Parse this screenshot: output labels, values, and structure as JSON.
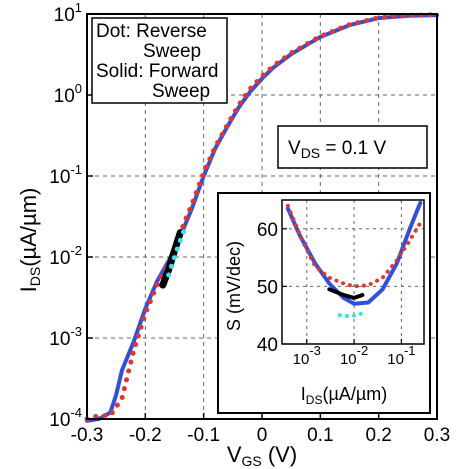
{
  "chart_data": [
    {
      "type": "line",
      "xlabel": "V",
      "xlabel_sub": "GS",
      "xlabel_unit": " (V)",
      "ylabel": "I",
      "ylabel_sub": "DS",
      "ylabel_unit": "(µA/µm)",
      "xlim": [
        -0.3,
        0.3
      ],
      "ylim": [
        0.0001,
        10
      ],
      "yscale": "log",
      "grid": true,
      "x_ticks": [
        "-0.3",
        "-0.2",
        "-0.1",
        "0",
        "0.1",
        "0.2",
        "0.3"
      ],
      "y_ticks": [
        {
          "base": "10",
          "exp": "-4"
        },
        {
          "base": "10",
          "exp": "-3"
        },
        {
          "base": "10",
          "exp": "-2"
        },
        {
          "base": "10",
          "exp": "-1"
        },
        {
          "base": "10",
          "exp": "0"
        },
        {
          "base": "10",
          "exp": "1"
        }
      ],
      "legend_box": {
        "line1": "Dot: Reverse",
        "line2": "Sweep",
        "line3": "Solid: Forward",
        "line4": "Sweep"
      },
      "annotation": {
        "prefix": "V",
        "sub": "DS",
        "suffix": " = 0.1 V"
      },
      "series": [
        {
          "color": "#2e50e0",
          "style": "solid",
          "points": [
            [
              -0.3,
              9.5e-05
            ],
            [
              -0.28,
              0.0001
            ],
            [
              -0.26,
              0.00012
            ],
            [
              -0.25,
              0.0002
            ],
            [
              -0.24,
              0.0004
            ],
            [
              -0.22,
              0.0009
            ],
            [
              -0.2,
              0.0023
            ],
            [
              -0.18,
              0.005
            ],
            [
              -0.16,
              0.009
            ],
            [
              -0.14,
              0.018
            ],
            [
              -0.12,
              0.04
            ],
            [
              -0.1,
              0.1
            ],
            [
              -0.08,
              0.22
            ],
            [
              -0.06,
              0.4
            ],
            [
              -0.04,
              0.7
            ],
            [
              -0.02,
              1.1
            ],
            [
              0,
              1.6
            ],
            [
              0.02,
              2.2
            ],
            [
              0.05,
              3.2
            ],
            [
              0.08,
              4.3
            ],
            [
              0.1,
              5.2
            ],
            [
              0.15,
              7.3
            ],
            [
              0.2,
              8.9
            ],
            [
              0.25,
              9.5
            ],
            [
              0.3,
              9.7
            ]
          ]
        },
        {
          "color": "#e8322a",
          "style": "dotted",
          "points": [
            [
              -0.3,
              0.0001
            ],
            [
              -0.28,
              0.00011
            ],
            [
              -0.26,
              0.00011
            ],
            [
              -0.24,
              0.00018
            ],
            [
              -0.22,
              0.0007
            ],
            [
              -0.2,
              0.002
            ],
            [
              -0.18,
              0.0045
            ],
            [
              -0.16,
              0.0085
            ],
            [
              -0.14,
              0.02
            ],
            [
              -0.12,
              0.045
            ],
            [
              -0.1,
              0.11
            ],
            [
              -0.08,
              0.23
            ],
            [
              -0.06,
              0.42
            ],
            [
              -0.04,
              0.75
            ],
            [
              -0.02,
              1.2
            ],
            [
              0,
              1.7
            ],
            [
              0.02,
              2.3
            ],
            [
              0.05,
              3.3
            ],
            [
              0.08,
              4.4
            ],
            [
              0.1,
              5.3
            ],
            [
              0.15,
              7.4
            ],
            [
              0.2,
              9.0
            ],
            [
              0.25,
              9.6
            ],
            [
              0.3,
              9.8
            ]
          ]
        },
        {
          "color": "#000000",
          "style": "solid",
          "points": [
            [
              -0.17,
              0.0045
            ],
            [
              -0.16,
              0.007
            ],
            [
              -0.15,
              0.012
            ],
            [
              -0.14,
              0.02
            ]
          ]
        },
        {
          "color": "#39e0f0",
          "style": "dotted",
          "points": [
            [
              -0.16,
              0.006
            ],
            [
              -0.15,
              0.01
            ],
            [
              -0.14,
              0.016
            ],
            [
              -0.13,
              0.025
            ]
          ]
        }
      ]
    },
    {
      "type": "line",
      "xlabel": "I",
      "xlabel_sub": "DS",
      "xlabel_unit": "(µA/µm)",
      "ylabel": "S (mV/dec)",
      "xscale": "log",
      "xlim": [
        0.0003,
        0.3
      ],
      "ylim": [
        40,
        65
      ],
      "grid": true,
      "x_ticks": [
        {
          "base": "10",
          "exp": "-3"
        },
        {
          "base": "10",
          "exp": "-2"
        },
        {
          "base": "10",
          "exp": "-1"
        }
      ],
      "y_ticks": [
        "40",
        "50",
        "60"
      ],
      "series": [
        {
          "color": "#2e50e0",
          "style": "solid",
          "points": [
            [
              0.0004,
              63.5
            ],
            [
              0.0007,
              59
            ],
            [
              0.0015,
              54
            ],
            [
              0.003,
              50.5
            ],
            [
              0.006,
              48
            ],
            [
              0.01,
              47
            ],
            [
              0.02,
              47.2
            ],
            [
              0.04,
              49.5
            ],
            [
              0.08,
              54
            ],
            [
              0.15,
              60
            ],
            [
              0.25,
              64.5
            ]
          ]
        },
        {
          "color": "#e8322a",
          "style": "dotted",
          "points": [
            [
              0.0004,
              64
            ],
            [
              0.0008,
              58
            ],
            [
              0.0015,
              53.5
            ],
            [
              0.003,
              51.5
            ],
            [
              0.006,
              50.5
            ],
            [
              0.01,
              50
            ],
            [
              0.02,
              50.2
            ],
            [
              0.04,
              51.5
            ],
            [
              0.08,
              54.5
            ],
            [
              0.15,
              58
            ],
            [
              0.25,
              61
            ]
          ]
        },
        {
          "color": "#000000",
          "style": "solid",
          "points": [
            [
              0.003,
              49.5
            ],
            [
              0.006,
              48.5
            ],
            [
              0.01,
              48
            ],
            [
              0.015,
              48.5
            ]
          ]
        },
        {
          "color": "#39e0f0",
          "style": "dotted",
          "points": [
            [
              0.005,
              45
            ],
            [
              0.008,
              44.8
            ],
            [
              0.012,
              45
            ],
            [
              0.016,
              45.5
            ]
          ]
        }
      ]
    }
  ]
}
